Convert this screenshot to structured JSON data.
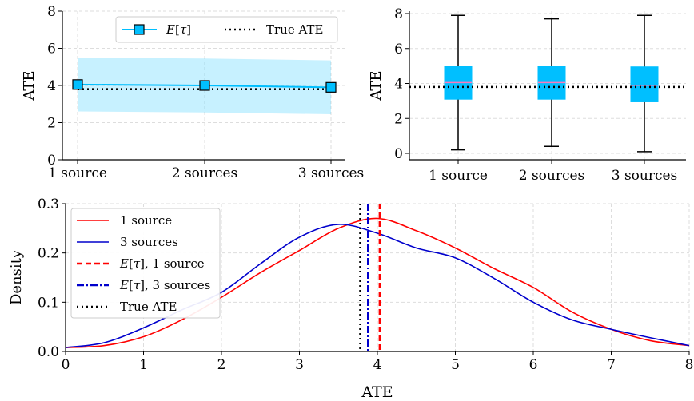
{
  "chart_data": [
    {
      "id": "ate-vs-sources",
      "type": "line",
      "categories": [
        "1 source",
        "2 sources",
        "3 sources"
      ],
      "series": [
        {
          "name": "E[τ]",
          "values": [
            4.05,
            4.0,
            3.9
          ],
          "band_lower": [
            2.6,
            2.55,
            2.45
          ],
          "band_upper": [
            5.5,
            5.45,
            5.35
          ],
          "color": "#00bfff",
          "marker": "square"
        },
        {
          "name": "True ATE",
          "values": [
            3.8,
            3.8,
            3.8
          ],
          "color": "#000000",
          "style": "dotted"
        }
      ],
      "xlabel": "",
      "ylabel": "ATE",
      "ylim": [
        0,
        8
      ],
      "yticks": [
        0,
        2,
        4,
        6,
        8
      ],
      "grid": true,
      "legend": "top-right"
    },
    {
      "id": "ate-boxplot",
      "type": "box",
      "categories": [
        "1 source",
        "2 sources",
        "3 sources"
      ],
      "boxes": [
        {
          "label": "1 source",
          "whisker_low": 0.2,
          "q1": 3.1,
          "median": 4.05,
          "q3": 5.0,
          "whisker_high": 7.9
        },
        {
          "label": "2 sources",
          "whisker_low": 0.4,
          "q1": 3.1,
          "median": 4.05,
          "q3": 5.0,
          "whisker_high": 7.7
        },
        {
          "label": "3 sources",
          "whisker_low": 0.1,
          "q1": 2.95,
          "median": 3.9,
          "q3": 4.95,
          "whisker_high": 7.9
        }
      ],
      "reference_line": 3.8,
      "box_color": "#00bfff",
      "median_color": "#ff77bb",
      "xlabel": "",
      "ylabel": "ATE",
      "ylim": [
        0,
        8
      ],
      "yticks": [
        0,
        2,
        4,
        6,
        8
      ],
      "grid": true
    },
    {
      "id": "ate-density",
      "type": "line",
      "x": [
        0,
        0.5,
        1,
        1.5,
        2,
        2.5,
        3,
        3.5,
        4,
        4.5,
        5,
        5.5,
        6,
        6.5,
        7,
        7.5,
        8
      ],
      "series": [
        {
          "name": "1 source",
          "values": [
            0.008,
            0.012,
            0.03,
            0.065,
            0.11,
            0.16,
            0.205,
            0.25,
            0.27,
            0.245,
            0.21,
            0.168,
            0.13,
            0.08,
            0.045,
            0.022,
            0.012
          ],
          "color": "#ff0000"
        },
        {
          "name": "3 sources",
          "values": [
            0.008,
            0.018,
            0.048,
            0.085,
            0.12,
            0.178,
            0.232,
            0.258,
            0.24,
            0.21,
            0.19,
            0.148,
            0.1,
            0.064,
            0.045,
            0.028,
            0.012
          ],
          "color": "#0000cc"
        }
      ],
      "vlines": [
        {
          "name": "E[τ], 1 source",
          "x": 4.03,
          "color": "#ff0000",
          "style": "dashed"
        },
        {
          "name": "E[τ], 3 sources",
          "x": 3.88,
          "color": "#0000cc",
          "style": "dashdot"
        },
        {
          "name": "True ATE",
          "x": 3.78,
          "color": "#000000",
          "style": "dotted"
        }
      ],
      "xlabel": "ATE",
      "ylabel": "Density",
      "xlim": [
        0,
        8
      ],
      "ylim": [
        0,
        0.3
      ],
      "xticks": [
        0,
        1,
        2,
        3,
        4,
        5,
        6,
        7,
        8
      ],
      "yticks": [
        "0.0",
        "0.1",
        "0.2",
        "0.3"
      ],
      "grid": true,
      "legend": "top-left"
    }
  ]
}
